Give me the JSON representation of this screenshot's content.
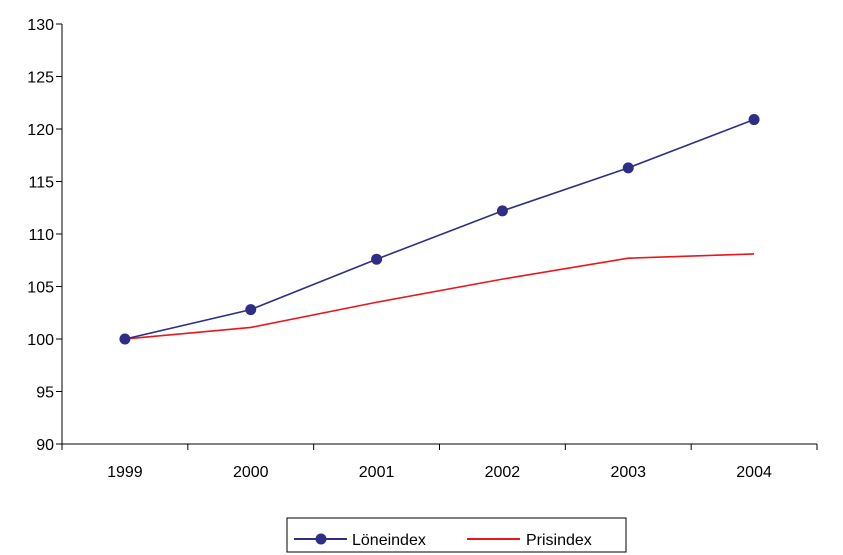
{
  "chart_data": {
    "type": "line",
    "categories": [
      "1999",
      "2000",
      "2001",
      "2002",
      "2003",
      "2004"
    ],
    "series": [
      {
        "name": "Löneindex",
        "values": [
          100.0,
          102.8,
          107.6,
          112.2,
          116.3,
          120.9
        ],
        "color": "#2E2E86",
        "marker": "circle"
      },
      {
        "name": "Prisindex",
        "values": [
          100.0,
          101.1,
          103.5,
          105.7,
          107.7,
          108.1
        ],
        "color": "#E8171C",
        "marker": "none"
      }
    ],
    "ylim": [
      90,
      130
    ],
    "yticks": [
      90,
      95,
      100,
      105,
      110,
      115,
      120,
      125,
      130
    ],
    "title": "",
    "xlabel": "",
    "ylabel": "",
    "grid": false,
    "legend": "bottom-center"
  }
}
